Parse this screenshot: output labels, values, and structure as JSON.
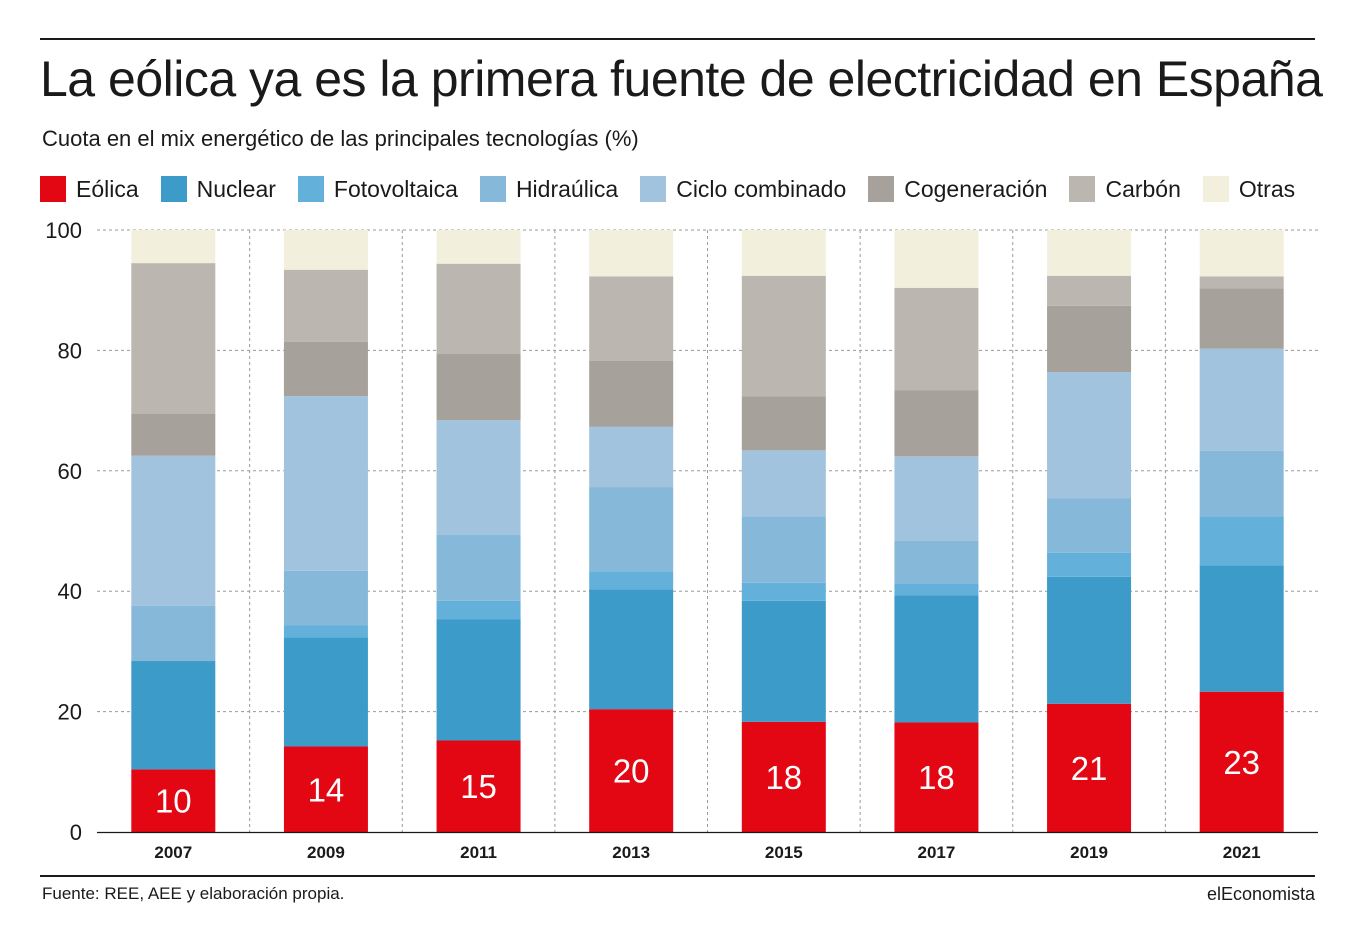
{
  "title": "La eólica ya es la primera fuente de electricidad en España",
  "subtitle": "Cuota en el mix energético de las principales tecnologías (%)",
  "source": "Fuente: REE, AEE y elaboración propia.",
  "brand": "elEconomista",
  "chart_data": {
    "type": "bar",
    "stacked": true,
    "title": "La eólica ya es la primera fuente de electricidad en España",
    "subtitle": "Cuota en el mix energético de las principales tecnologías (%)",
    "xlabel": "",
    "ylabel": "",
    "ylim": [
      0,
      100
    ],
    "yticks": [
      0,
      20,
      40,
      60,
      80,
      100
    ],
    "grid": true,
    "legend_position": "top",
    "categories": [
      "2007",
      "2009",
      "2011",
      "2013",
      "2015",
      "2017",
      "2019",
      "2021"
    ],
    "series": [
      {
        "name": "Eólica",
        "color": "#e30613",
        "values": [
          10.4,
          14.2,
          15.2,
          20.4,
          18.3,
          18.2,
          21.3,
          23.3
        ],
        "data_labels": [
          "10",
          "14",
          "15",
          "20",
          "18",
          "18",
          "21",
          "23"
        ]
      },
      {
        "name": "Nuclear",
        "color": "#3c9bc8",
        "values": [
          18.0,
          18.1,
          20.1,
          19.9,
          20.1,
          21.1,
          21.1,
          21.0
        ]
      },
      {
        "name": "Fotovoltaica",
        "color": "#63b1da",
        "values": [
          0,
          2.0,
          3.1,
          3.0,
          3.0,
          2.0,
          4.0,
          8.1
        ]
      },
      {
        "name": "Hidraúlica",
        "color": "#86b9d9",
        "values": [
          9.2,
          9.1,
          11.0,
          14.0,
          11.0,
          7.1,
          9.0,
          10.9
        ]
      },
      {
        "name": "Ciclo combinado",
        "color": "#a1c3de",
        "values": [
          24.9,
          29.0,
          19.0,
          10.0,
          11.0,
          14.0,
          21.0,
          17.0
        ]
      },
      {
        "name": "Cogeneración",
        "color": "#a7a19b",
        "values": [
          7.0,
          9.0,
          11.0,
          11.0,
          9.0,
          11.0,
          11.0,
          10.0
        ]
      },
      {
        "name": "Carbón",
        "color": "#bbb6b0",
        "values": [
          25.0,
          12.0,
          15.0,
          14.0,
          20.0,
          17.0,
          5.0,
          2.0
        ]
      },
      {
        "name": "Otras",
        "color": "#f2efdd",
        "values": [
          5.5,
          6.6,
          5.6,
          7.7,
          7.6,
          9.6,
          7.6,
          7.7
        ]
      }
    ]
  }
}
